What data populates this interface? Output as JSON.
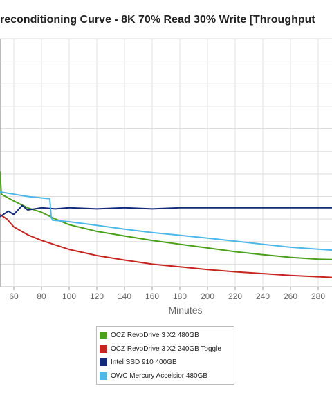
{
  "chart_data": {
    "type": "line",
    "title": "reconditioning Curve - 8K 70% Read 30% Write [Throughput",
    "xlabel": "Minutes",
    "ylabel": "",
    "xlim": [
      50,
      290
    ],
    "ylim": [
      0,
      11
    ],
    "x_ticks": [
      60,
      80,
      100,
      120,
      140,
      160,
      180,
      200,
      220,
      240,
      260,
      280
    ],
    "grid": true,
    "legend_position": "bottom",
    "series": [
      {
        "name": "OCZ RevoDrive 3 X2 480GB",
        "color": "#4aa019",
        "points": [
          [
            50,
            5.1
          ],
          [
            51,
            4.1
          ],
          [
            60,
            3.8
          ],
          [
            70,
            3.5
          ],
          [
            80,
            3.3
          ],
          [
            90,
            3.0
          ],
          [
            100,
            2.75
          ],
          [
            120,
            2.45
          ],
          [
            140,
            2.25
          ],
          [
            160,
            2.05
          ],
          [
            180,
            1.88
          ],
          [
            200,
            1.72
          ],
          [
            220,
            1.55
          ],
          [
            240,
            1.42
          ],
          [
            260,
            1.3
          ],
          [
            280,
            1.22
          ],
          [
            290,
            1.2
          ]
        ]
      },
      {
        "name": "OCZ RevoDrive 3 X2 240GB Toggle",
        "color": "#c6251f",
        "points": [
          [
            50,
            3.2
          ],
          [
            55,
            3.0
          ],
          [
            60,
            2.65
          ],
          [
            70,
            2.3
          ],
          [
            80,
            2.05
          ],
          [
            90,
            1.85
          ],
          [
            100,
            1.65
          ],
          [
            120,
            1.38
          ],
          [
            140,
            1.18
          ],
          [
            160,
            1.0
          ],
          [
            180,
            0.88
          ],
          [
            200,
            0.76
          ],
          [
            220,
            0.66
          ],
          [
            240,
            0.58
          ],
          [
            260,
            0.5
          ],
          [
            280,
            0.44
          ],
          [
            290,
            0.41
          ]
        ]
      },
      {
        "name": "Intel SSD 910 400GB",
        "color": "#112a7a",
        "points": [
          [
            50,
            3.1
          ],
          [
            56,
            3.35
          ],
          [
            60,
            3.2
          ],
          [
            66,
            3.6
          ],
          [
            70,
            3.4
          ],
          [
            80,
            3.5
          ],
          [
            90,
            3.45
          ],
          [
            100,
            3.5
          ],
          [
            120,
            3.45
          ],
          [
            140,
            3.5
          ],
          [
            160,
            3.45
          ],
          [
            180,
            3.5
          ],
          [
            200,
            3.5
          ],
          [
            220,
            3.5
          ],
          [
            240,
            3.5
          ],
          [
            260,
            3.5
          ],
          [
            280,
            3.5
          ],
          [
            290,
            3.5
          ]
        ]
      },
      {
        "name": "OWC Mercury Accelsior 480GB",
        "color": "#4db8e8",
        "points": [
          [
            50,
            4.2
          ],
          [
            60,
            4.1
          ],
          [
            70,
            4.0
          ],
          [
            86,
            3.9
          ],
          [
            87,
            3.1
          ],
          [
            88,
            2.95
          ],
          [
            100,
            2.88
          ],
          [
            120,
            2.72
          ],
          [
            140,
            2.55
          ],
          [
            160,
            2.4
          ],
          [
            180,
            2.28
          ],
          [
            200,
            2.15
          ],
          [
            220,
            2.02
          ],
          [
            240,
            1.88
          ],
          [
            260,
            1.75
          ],
          [
            280,
            1.66
          ],
          [
            290,
            1.62
          ]
        ]
      }
    ]
  }
}
